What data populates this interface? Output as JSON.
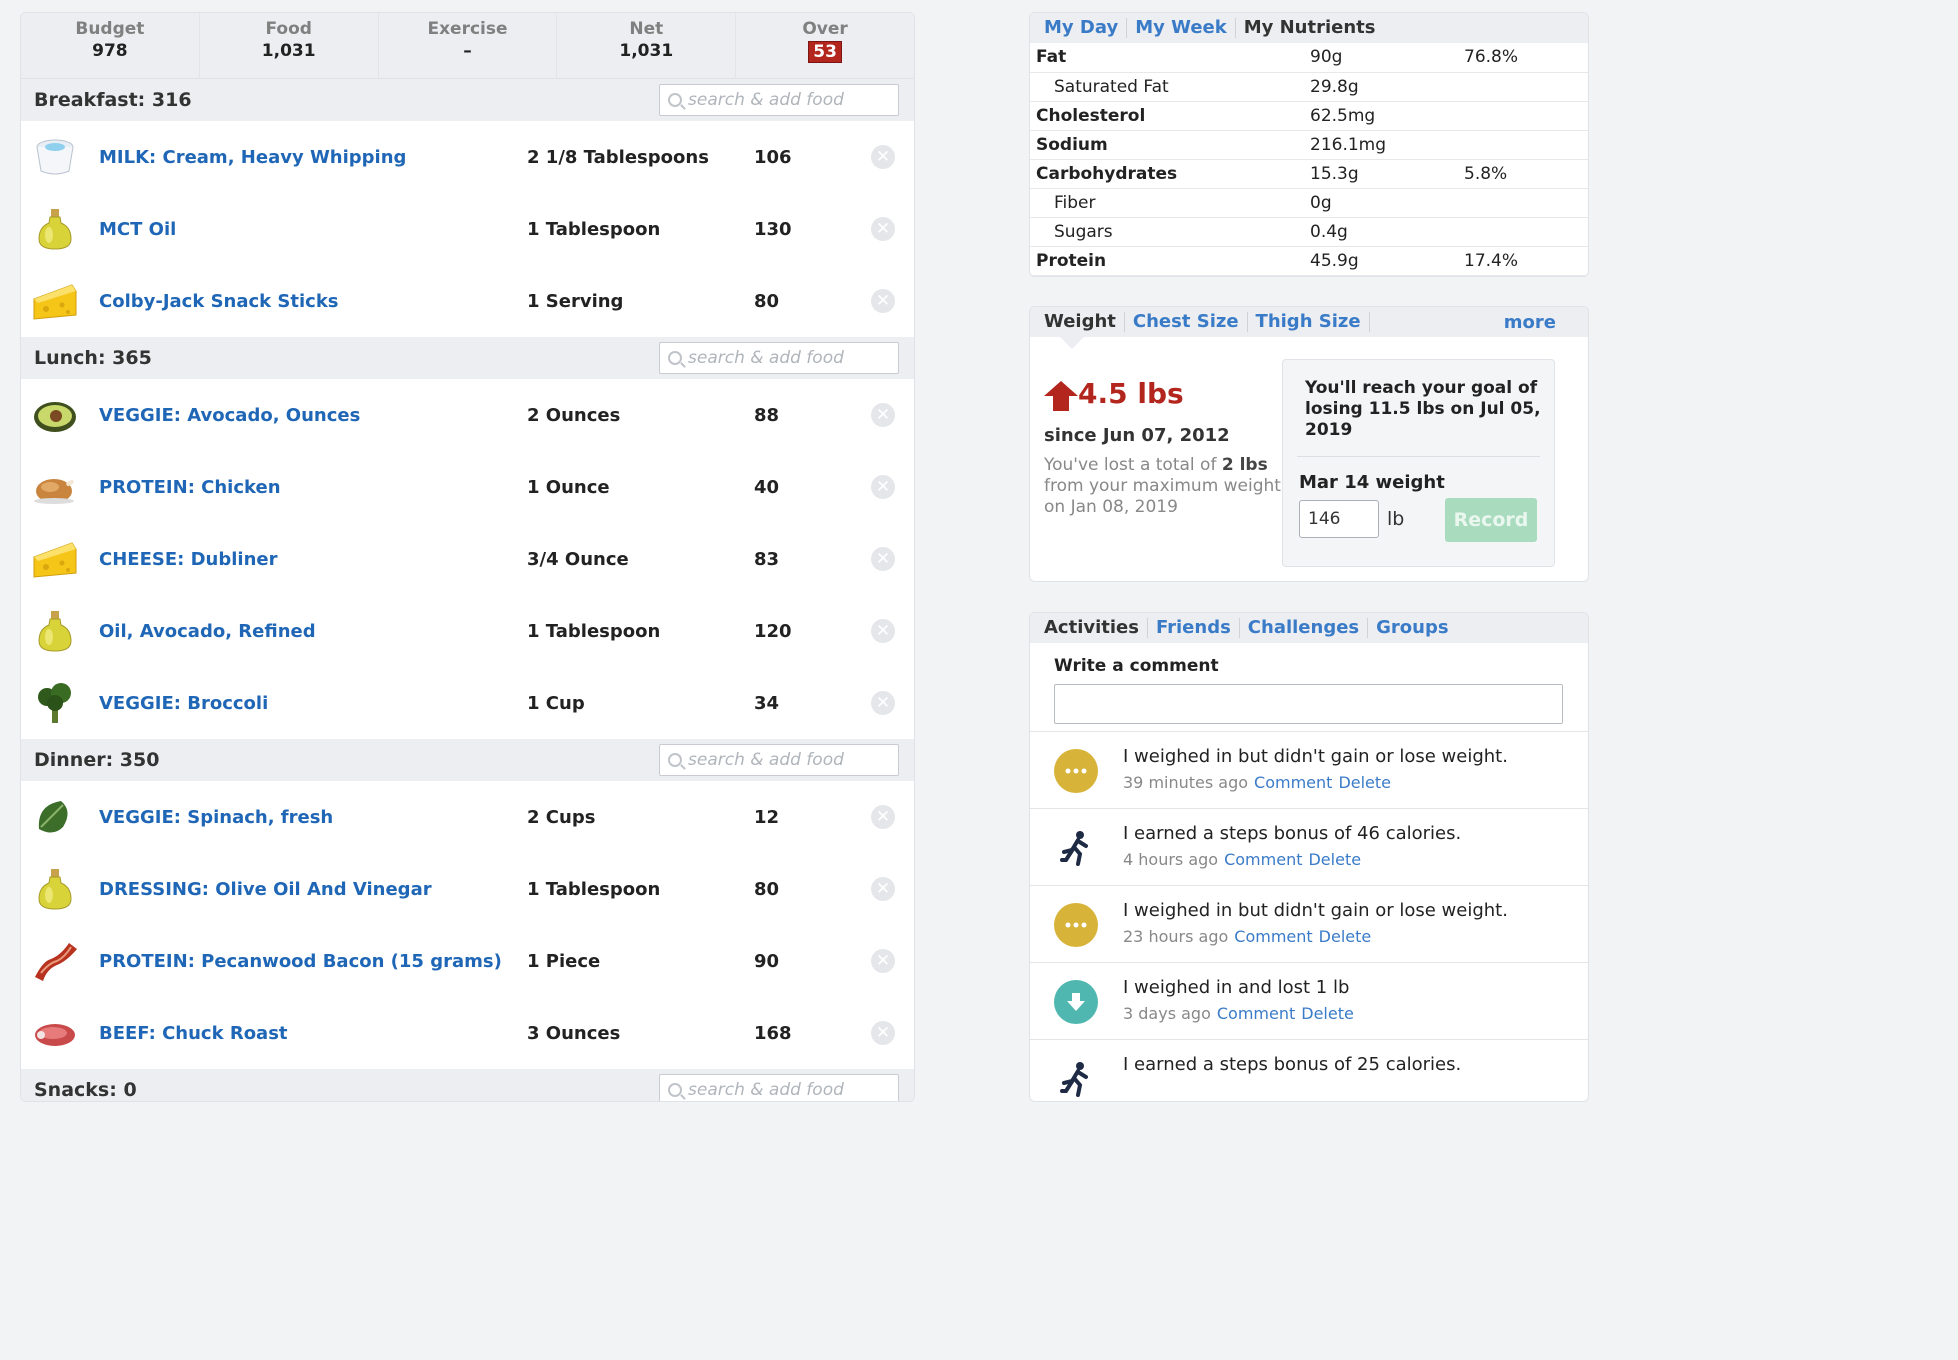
{
  "summary": {
    "budget_label": "Budget",
    "budget_value": "978",
    "food_label": "Food",
    "food_value": "1,031",
    "exercise_label": "Exercise",
    "exercise_value": "–",
    "net_label": "Net",
    "net_value": "1,031",
    "over_label": "Over",
    "over_value": "53"
  },
  "search_placeholder": "search & add food",
  "meals": [
    {
      "title": "Breakfast: 316",
      "items": [
        {
          "icon": "cream-cup-icon",
          "name": "MILK: Cream, Heavy Whipping",
          "amount": "2 1/8 Tablespoons",
          "calories": "106"
        },
        {
          "icon": "oil-bottle-icon",
          "name": "MCT Oil",
          "amount": "1 Tablespoon",
          "calories": "130"
        },
        {
          "icon": "cheese-icon",
          "name": "Colby-Jack Snack Sticks",
          "amount": "1 Serving",
          "calories": "80"
        }
      ]
    },
    {
      "title": "Lunch: 365",
      "items": [
        {
          "icon": "avocado-icon",
          "name": "VEGGIE: Avocado, Ounces",
          "amount": "2 Ounces",
          "calories": "88"
        },
        {
          "icon": "chicken-icon",
          "name": "PROTEIN: Chicken",
          "amount": "1 Ounce",
          "calories": "40"
        },
        {
          "icon": "cheese-icon",
          "name": "CHEESE: Dubliner",
          "amount": "3/4 Ounce",
          "calories": "83"
        },
        {
          "icon": "oil-bottle-icon",
          "name": "Oil, Avocado, Refined",
          "amount": "1 Tablespoon",
          "calories": "120"
        },
        {
          "icon": "broccoli-icon",
          "name": "VEGGIE: Broccoli",
          "amount": "1 Cup",
          "calories": "34"
        }
      ]
    },
    {
      "title": "Dinner: 350",
      "items": [
        {
          "icon": "spinach-icon",
          "name": "VEGGIE: Spinach, fresh",
          "amount": "2 Cups",
          "calories": "12"
        },
        {
          "icon": "oil-bottle-icon",
          "name": "DRESSING: Olive Oil And Vinegar",
          "amount": "1 Tablespoon",
          "calories": "80"
        },
        {
          "icon": "bacon-icon",
          "name": "PROTEIN: Pecanwood Bacon (15 grams)",
          "amount": "1 Piece",
          "calories": "90"
        },
        {
          "icon": "steak-icon",
          "name": "BEEF: Chuck Roast",
          "amount": "3 Ounces",
          "calories": "168"
        }
      ]
    },
    {
      "title": "Snacks: 0",
      "items": []
    }
  ],
  "nutrient_tabs": [
    "My Day",
    "My Week",
    "My Nutrients"
  ],
  "nutrients": [
    {
      "label": "Fat",
      "value": "90g",
      "pct": "76.8%",
      "sub": false
    },
    {
      "label": "Saturated Fat",
      "value": "29.8g",
      "pct": "",
      "sub": true
    },
    {
      "label": "Cholesterol",
      "value": "62.5mg",
      "pct": "",
      "sub": false
    },
    {
      "label": "Sodium",
      "value": "216.1mg",
      "pct": "",
      "sub": false
    },
    {
      "label": "Carbohydrates",
      "value": "15.3g",
      "pct": "5.8%",
      "sub": false
    },
    {
      "label": "Fiber",
      "value": "0g",
      "pct": "",
      "sub": true
    },
    {
      "label": "Sugars",
      "value": "0.4g",
      "pct": "",
      "sub": true
    },
    {
      "label": "Protein",
      "value": "45.9g",
      "pct": "17.4%",
      "sub": false
    }
  ],
  "weight": {
    "tabs": [
      "Weight",
      "Chest Size",
      "Thigh Size"
    ],
    "more": "more",
    "lost": "4.5 lbs",
    "since": "since Jun 07, 2012",
    "desc_pre": "You've lost a total of ",
    "desc_bold": "2 lbs",
    "desc_post": " from your maximum weight on Jan 08, 2019",
    "goal": "You'll reach your goal of losing 11.5 lbs on Jul 05, 2019",
    "record_label": "Mar 14 weight",
    "input_value": "146",
    "unit": "lb",
    "record_button": "Record"
  },
  "activity": {
    "tabs": [
      "Activities",
      "Friends",
      "Challenges",
      "Groups"
    ],
    "comment_label": "Write a comment",
    "comment_link": "Comment",
    "delete_link": "Delete",
    "items": [
      {
        "icon": "ellipsis-icon",
        "text": "I weighed in but didn't gain or lose weight.",
        "time": "39 minutes ago"
      },
      {
        "icon": "runner-icon",
        "text": "I earned a steps bonus of 46 calories.",
        "time": "4 hours ago"
      },
      {
        "icon": "ellipsis-icon",
        "text": "I weighed in but didn't gain or lose weight.",
        "time": "23 hours ago"
      },
      {
        "icon": "down-arrow-icon",
        "text": "I weighed in and lost 1 lb",
        "time": "3 days ago"
      },
      {
        "icon": "runner-icon",
        "text": "I earned a steps bonus of 25 calories.",
        "time": ""
      }
    ]
  },
  "colors": {
    "link": "#1f67b6",
    "over": "#b3261e",
    "record": "#a9dbbf"
  }
}
